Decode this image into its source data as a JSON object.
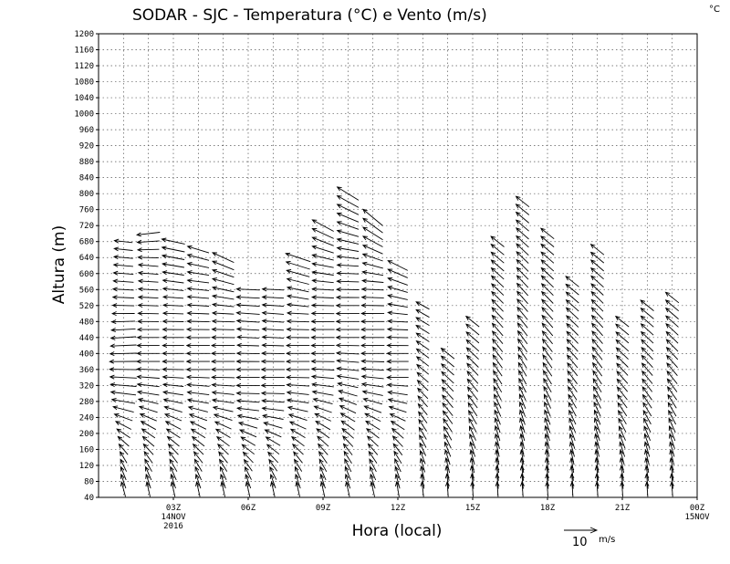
{
  "chart_data": {
    "type": "wind-vector",
    "title": "SODAR - SJC - Temperatura (°C) e Vento (m/s)",
    "corner_unit": "°C",
    "xlabel": "Hora (local)",
    "ylabel": "Altura (m)",
    "ylim": [
      40,
      1200
    ],
    "yticks": [
      "40",
      "80",
      "120",
      "160",
      "200",
      "240",
      "280",
      "320",
      "360",
      "400",
      "440",
      "480",
      "520",
      "560",
      "600",
      "640",
      "680",
      "720",
      "760",
      "800",
      "840",
      "880",
      "920",
      "960",
      "1000",
      "1040",
      "1080",
      "1120",
      "1160",
      "1200"
    ],
    "xlim_hours": [
      0,
      24
    ],
    "xticks": [
      {
        "hour": 3,
        "label": "03Z",
        "sub1": "14NOV",
        "sub2": "2016"
      },
      {
        "hour": 6,
        "label": "06Z",
        "sub1": "",
        "sub2": ""
      },
      {
        "hour": 9,
        "label": "09Z",
        "sub1": "",
        "sub2": ""
      },
      {
        "hour": 12,
        "label": "12Z",
        "sub1": "",
        "sub2": ""
      },
      {
        "hour": 15,
        "label": "15Z",
        "sub1": "",
        "sub2": ""
      },
      {
        "hour": 18,
        "label": "18Z",
        "sub1": "",
        "sub2": ""
      },
      {
        "hour": 21,
        "label": "21Z",
        "sub1": "",
        "sub2": ""
      },
      {
        "hour": 24,
        "label": "00Z",
        "sub1": "15NOV",
        "sub2": ""
      }
    ],
    "reference_vector": {
      "speed": 10,
      "label": "10",
      "unit": "m/s"
    },
    "series": [
      {
        "hour": 1.0,
        "top": 680,
        "u": [
          -1.2,
          -2.0,
          -4.5,
          -7.5,
          -8.5,
          -7.5,
          -6.5,
          -6.0,
          -5.5
        ],
        "v": [
          4.5,
          3.5,
          2.5,
          1.0,
          0,
          -0.5,
          0.2,
          0.5,
          0.6
        ]
      },
      {
        "hour": 2.0,
        "top": 700,
        "u": [
          -1.0,
          -2.5,
          -4.5,
          -6.5,
          -7.0,
          -6.5,
          -6.0,
          -6.0,
          -7.0
        ],
        "v": [
          4.5,
          3.5,
          2.5,
          1.0,
          0,
          0,
          0.3,
          0.5,
          -0.8
        ]
      },
      {
        "hour": 3.0,
        "top": 680,
        "u": [
          -1.0,
          -2.5,
          -4.5,
          -6.0,
          -6.5,
          -6.5,
          -6.0,
          -6.5,
          -7.0
        ],
        "v": [
          4.5,
          3.5,
          2.5,
          1.0,
          0,
          0,
          0.3,
          1.0,
          1.5
        ]
      },
      {
        "hour": 4.0,
        "top": 660,
        "u": [
          -1.0,
          -2.5,
          -4.5,
          -6.5,
          -7.0,
          -7.0,
          -6.5,
          -6.5,
          -6.5
        ],
        "v": [
          4.5,
          3.5,
          2.5,
          1.0,
          0,
          0,
          0.3,
          0.8,
          2.0
        ]
      },
      {
        "hour": 5.0,
        "top": 640,
        "u": [
          -1.0,
          -2.5,
          -4.5,
          -6.5,
          -7.0,
          -7.0,
          -6.5,
          -6.5,
          -6.5
        ],
        "v": [
          4.5,
          3.5,
          2.5,
          1.0,
          0,
          0,
          0.3,
          1.5,
          3.0
        ]
      },
      {
        "hour": 6.0,
        "top": 560,
        "u": [
          -1.0,
          -2.5,
          -4.5,
          -6.5,
          -7.0,
          -7.0,
          -6.5,
          -7.0,
          -7.0
        ],
        "v": [
          4.5,
          3.5,
          2.5,
          1.0,
          0,
          0,
          0.3,
          0.5,
          0.3
        ]
      },
      {
        "hour": 7.0,
        "top": 560,
        "u": [
          -1.0,
          -2.5,
          -4.5,
          -6.5,
          -7.0,
          -7.0,
          -6.5,
          -6.5,
          -6.5
        ],
        "v": [
          4.5,
          3.5,
          2.5,
          1.0,
          0,
          0,
          0.3,
          0.5,
          0.3
        ]
      },
      {
        "hour": 8.0,
        "top": 640,
        "u": [
          -1.0,
          -2.5,
          -4.5,
          -6.5,
          -7.0,
          -7.0,
          -6.5,
          -6.5,
          -7.5
        ],
        "v": [
          4.5,
          3.5,
          2.5,
          1.0,
          0,
          0,
          0.3,
          1.5,
          2.5
        ]
      },
      {
        "hour": 9.0,
        "top": 720,
        "u": [
          -1.0,
          -2.5,
          -4.5,
          -6.5,
          -7.0,
          -7.0,
          -6.5,
          -6.5,
          -6.5
        ],
        "v": [
          4.5,
          3.5,
          2.5,
          1.0,
          0,
          0,
          0.3,
          1.5,
          3.5
        ]
      },
      {
        "hour": 10.0,
        "top": 800,
        "u": [
          -1.0,
          -2.5,
          -4.5,
          -6.5,
          -7.0,
          -7.0,
          -6.5,
          -6.5,
          -6.5
        ],
        "v": [
          4.5,
          3.5,
          2.5,
          1.0,
          0,
          0,
          0.3,
          2.0,
          4.0
        ]
      },
      {
        "hour": 11.0,
        "top": 740,
        "u": [
          -1.0,
          -2.5,
          -4.5,
          -6.5,
          -7.0,
          -7.0,
          -6.5,
          -6.0,
          -6.0
        ],
        "v": [
          4.5,
          3.5,
          2.5,
          1.0,
          0,
          0,
          0.3,
          2.5,
          5.0
        ]
      },
      {
        "hour": 12.0,
        "top": 620,
        "u": [
          -0.8,
          -2.0,
          -3.5,
          -5.5,
          -6.5,
          -6.5,
          -6.0,
          -6.0,
          -6.0
        ],
        "v": [
          4.5,
          3.8,
          3.0,
          1.5,
          0,
          0,
          0.3,
          1.5,
          3.0
        ]
      },
      {
        "hour": 13.0,
        "top": 520,
        "u": [
          -0.5,
          -1.2,
          -2.0,
          -2.5,
          -3.0,
          -3.5,
          -3.8,
          -4.0,
          -4.0
        ],
        "v": [
          4.5,
          4.2,
          3.8,
          3.5,
          3.2,
          3.0,
          2.8,
          2.5,
          2.2
        ]
      },
      {
        "hour": 14.0,
        "top": 400,
        "u": [
          -0.3,
          -0.8,
          -1.5,
          -2.2,
          -2.8,
          -3.2,
          -3.5,
          -3.8,
          -4.0
        ],
        "v": [
          4.5,
          4.5,
          4.5,
          4.2,
          4.0,
          3.8,
          3.6,
          3.4,
          3.2
        ]
      },
      {
        "hour": 15.0,
        "top": 480,
        "u": [
          -0.3,
          -0.8,
          -1.5,
          -2.2,
          -2.8,
          -3.2,
          -3.5,
          -3.8,
          -4.0
        ],
        "v": [
          4.5,
          4.5,
          4.5,
          4.2,
          4.0,
          3.8,
          3.6,
          3.4,
          3.2
        ]
      },
      {
        "hour": 16.0,
        "top": 680,
        "u": [
          -0.3,
          -0.8,
          -1.5,
          -2.2,
          -2.8,
          -3.2,
          -3.5,
          -3.8,
          -4.0
        ],
        "v": [
          4.5,
          4.5,
          4.5,
          4.2,
          4.0,
          3.8,
          3.6,
          3.4,
          3.2
        ]
      },
      {
        "hour": 17.0,
        "top": 780,
        "u": [
          -0.3,
          -0.8,
          -1.5,
          -2.2,
          -2.8,
          -3.2,
          -3.5,
          -3.8,
          -4.0
        ],
        "v": [
          4.5,
          4.5,
          4.5,
          4.2,
          4.0,
          3.8,
          3.6,
          3.4,
          3.2
        ]
      },
      {
        "hour": 18.0,
        "top": 700,
        "u": [
          -0.3,
          -0.8,
          -1.5,
          -2.2,
          -2.8,
          -3.2,
          -3.5,
          -3.8,
          -4.0
        ],
        "v": [
          4.5,
          4.5,
          4.5,
          4.2,
          4.0,
          3.8,
          3.6,
          3.4,
          3.2
        ]
      },
      {
        "hour": 19.0,
        "top": 580,
        "u": [
          -0.3,
          -0.8,
          -1.5,
          -2.2,
          -2.8,
          -3.2,
          -3.5,
          -3.8,
          -4.0
        ],
        "v": [
          4.5,
          4.5,
          4.5,
          4.2,
          4.0,
          3.8,
          3.6,
          3.4,
          3.2
        ]
      },
      {
        "hour": 20.0,
        "top": 660,
        "u": [
          -0.3,
          -0.8,
          -1.5,
          -2.2,
          -2.8,
          -3.2,
          -3.5,
          -3.8,
          -4.0
        ],
        "v": [
          4.5,
          4.5,
          4.5,
          4.2,
          4.0,
          3.8,
          3.6,
          3.4,
          3.2
        ]
      },
      {
        "hour": 21.0,
        "top": 480,
        "u": [
          -0.3,
          -0.8,
          -1.5,
          -2.2,
          -2.8,
          -3.2,
          -3.5,
          -3.8,
          -4.0
        ],
        "v": [
          4.5,
          4.5,
          4.5,
          4.2,
          4.0,
          3.8,
          3.6,
          3.4,
          3.2
        ]
      },
      {
        "hour": 22.0,
        "top": 520,
        "u": [
          -0.3,
          -0.8,
          -1.5,
          -2.2,
          -2.8,
          -3.2,
          -3.5,
          -3.8,
          -4.0
        ],
        "v": [
          4.5,
          4.5,
          4.5,
          4.2,
          4.0,
          3.8,
          3.6,
          3.4,
          3.2
        ]
      },
      {
        "hour": 23.0,
        "top": 540,
        "u": [
          -0.3,
          -0.8,
          -1.5,
          -2.2,
          -2.8,
          -3.2,
          -3.5,
          -3.8,
          -4.0
        ],
        "v": [
          4.5,
          4.5,
          4.5,
          4.2,
          4.0,
          3.8,
          3.6,
          3.4,
          3.2
        ]
      }
    ]
  }
}
